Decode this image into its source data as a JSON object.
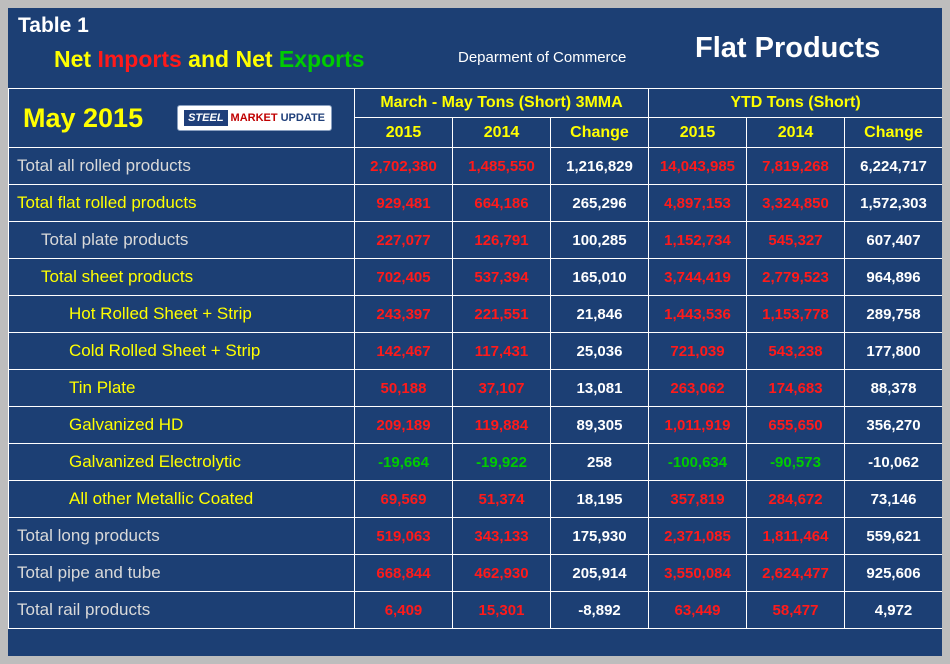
{
  "header": {
    "table_label": "Table 1",
    "title_parts": [
      {
        "text": "Net ",
        "color": "#FFFF00"
      },
      {
        "text": "Imports",
        "color": "#FF1A1A"
      },
      {
        "text": " and Net ",
        "color": "#FFFF00"
      },
      {
        "text": "Exports",
        "color": "#00CC00"
      }
    ],
    "department": "Deparment of Commerce",
    "product": "Flat Products",
    "month": "May 2015",
    "logo": {
      "steel": "STEEL",
      "market": "MARKET",
      "update": "UPDATE"
    }
  },
  "columns": {
    "group1": "March - May Tons (Short) 3MMA",
    "group2": "YTD Tons (Short)",
    "sub": [
      "2015",
      "2014",
      "Change"
    ]
  },
  "rows": [
    {
      "label": "Total all rolled products",
      "indent": 0,
      "label_color": "white",
      "values": [
        "2,702,380",
        "1,485,550",
        "1,216,829",
        "14,043,985",
        "7,819,268",
        "6,224,717"
      ]
    },
    {
      "label": "Total flat rolled products",
      "indent": 0,
      "label_color": "yellow",
      "values": [
        "929,481",
        "664,186",
        "265,296",
        "4,897,153",
        "3,324,850",
        "1,572,303"
      ]
    },
    {
      "label": "Total plate products",
      "indent": 1,
      "label_color": "white",
      "values": [
        "227,077",
        "126,791",
        "100,285",
        "1,152,734",
        "545,327",
        "607,407"
      ]
    },
    {
      "label": "Total sheet products",
      "indent": 1,
      "label_color": "yellow",
      "values": [
        "702,405",
        "537,394",
        "165,010",
        "3,744,419",
        "2,779,523",
        "964,896"
      ]
    },
    {
      "label": "Hot Rolled Sheet + Strip",
      "indent": 2,
      "label_color": "yellow",
      "values": [
        "243,397",
        "221,551",
        "21,846",
        "1,443,536",
        "1,153,778",
        "289,758"
      ]
    },
    {
      "label": "Cold Rolled Sheet + Strip",
      "indent": 2,
      "label_color": "yellow",
      "values": [
        "142,467",
        "117,431",
        "25,036",
        "721,039",
        "543,238",
        "177,800"
      ]
    },
    {
      "label": "Tin Plate",
      "indent": 2,
      "label_color": "yellow",
      "values": [
        "50,188",
        "37,107",
        "13,081",
        "263,062",
        "174,683",
        "88,378"
      ]
    },
    {
      "label": "Galvanized HD",
      "indent": 2,
      "label_color": "yellow",
      "values": [
        "209,189",
        "119,884",
        "89,305",
        "1,011,919",
        "655,650",
        "356,270"
      ]
    },
    {
      "label": "Galvanized Electrolytic",
      "indent": 2,
      "label_color": "yellow",
      "values": [
        "-19,664",
        "-19,922",
        "258",
        "-100,634",
        "-90,573",
        "-10,062"
      ]
    },
    {
      "label": "All other Metallic Coated",
      "indent": 2,
      "label_color": "yellow",
      "values": [
        "69,569",
        "51,374",
        "18,195",
        "357,819",
        "284,672",
        "73,146"
      ]
    },
    {
      "label": "Total long products",
      "indent": 0,
      "label_color": "white",
      "values": [
        "519,063",
        "343,133",
        "175,930",
        "2,371,085",
        "1,811,464",
        "559,621"
      ]
    },
    {
      "label": "Total pipe and tube",
      "indent": 0,
      "label_color": "white",
      "values": [
        "668,844",
        "462,930",
        "205,914",
        "3,550,084",
        "2,624,477",
        "925,606"
      ]
    },
    {
      "label": "Total rail products",
      "indent": 0,
      "label_color": "white",
      "values": [
        "6,409",
        "15,301",
        "-8,892",
        "63,449",
        "58,477",
        "4,972"
      ]
    }
  ],
  "colors": {
    "bg": "#1C3F74",
    "frame": "#BDBDBD",
    "grid": "#FFFFFF",
    "pos": "#FF1A1A",
    "neg": "#00CC00",
    "chg": "#FFFFFF",
    "yellow": "#FFFF00",
    "labelwhite": "#D9D9D9"
  }
}
